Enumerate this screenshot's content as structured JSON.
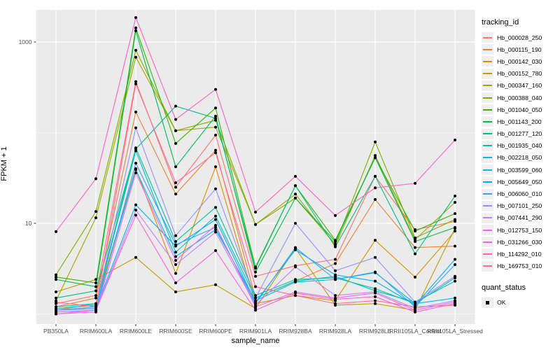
{
  "axes": {
    "x": {
      "label": "sample_name"
    },
    "y": {
      "label": "FPKM + 1",
      "tick_labels": [
        "10",
        "1000"
      ]
    }
  },
  "legends": {
    "tracking": {
      "title": "tracking_id"
    },
    "quant": {
      "title": "quant_status",
      "items": [
        {
          "label": "OK"
        }
      ]
    }
  },
  "style": {
    "panel_bg": "#EBEBEB",
    "grid": "#FFFFFF",
    "tick_mark": "#333333",
    "tick_text": "#4D4D4D",
    "legend_key_bg": "#EFEFEF",
    "point_color": "#000000"
  },
  "chart_data": {
    "type": "line",
    "title": "",
    "xlabel": "sample_name",
    "ylabel": "FPKM + 1",
    "y_scale": "log10",
    "y_major_ticks": [
      10,
      1000
    ],
    "y_minor_gridlines": [
      1,
      100
    ],
    "ylim_approx": [
      1,
      2000
    ],
    "legend_position": "right",
    "grid": "on",
    "quant_status_all": "OK",
    "categories": [
      "PB350LA",
      "RRIM600LA",
      "RRIM600LE",
      "RRIM600SE",
      "RRIM600PE",
      "RRIM901LA",
      "RRIM928BA",
      "RRIM928LA",
      "RRIM928LE",
      "RRII105LA_Control",
      "RRII105LA_Stressed"
    ],
    "series": [
      {
        "name": "Hb_000028_250",
        "color": "#F8766D",
        "values": [
          1.3,
          1.6,
          365,
          25,
          94,
          2.6,
          3.4,
          4.0,
          33,
          8.5,
          10.5
        ]
      },
      {
        "name": "Hb_000115_190",
        "color": "#EA8331",
        "values": [
          1.2,
          1.5,
          169,
          21,
          64,
          1.5,
          2.3,
          3.6,
          18.3,
          5.4,
          5.6
        ]
      },
      {
        "name": "Hb_000142_030",
        "color": "#D89000",
        "values": [
          1.1,
          1.3,
          40,
          2.8,
          42,
          1.3,
          1.6,
          1.4,
          6.5,
          2.55,
          8.2
        ]
      },
      {
        "name": "Hb_000152_780",
        "color": "#C09B00",
        "values": [
          1.75,
          2.4,
          4.2,
          1.75,
          2.1,
          1.15,
          5.3,
          1.25,
          1.3,
          1.1,
          8.8
        ]
      },
      {
        "name": "Hb_000347_160",
        "color": "#A3A500",
        "values": [
          1.4,
          11.5,
          680,
          105,
          115,
          9.7,
          21,
          5.7,
          56,
          6.6,
          17
        ]
      },
      {
        "name": "Hb_000388_040",
        "color": "#7CAE00",
        "values": [
          2.7,
          13.5,
          810,
          105,
          137,
          9.7,
          19,
          5.9,
          79,
          6.9,
          11
        ]
      },
      {
        "name": "Hb_001040_050",
        "color": "#39B600",
        "values": [
          2.55,
          2.2,
          1430,
          76,
          187,
          3.3,
          26,
          6.5,
          53,
          8.2,
          12.8
        ]
      },
      {
        "name": "Hb_001143_200",
        "color": "#00BB4E",
        "values": [
          2.4,
          2.0,
          1330,
          42,
          152,
          2.9,
          19,
          6.3,
          53,
          6.3,
          9.0
        ]
      },
      {
        "name": "Hb_001277_120",
        "color": "#00BF7D",
        "values": [
          1.5,
          1.8,
          66,
          196,
          144,
          3.2,
          26,
          5.5,
          33,
          4.6,
          20
        ]
      },
      {
        "name": "Hb_001935_040",
        "color": "#00C1A3",
        "values": [
          1.2,
          1.3,
          68,
          6.3,
          15,
          1.6,
          2.4,
          2.5,
          1.9,
          1.3,
          2.5
        ]
      },
      {
        "name": "Hb_002218_050",
        "color": "#00BFC4",
        "values": [
          1.15,
          1.25,
          63,
          4.8,
          12,
          1.5,
          2.3,
          2.6,
          1.8,
          1.35,
          2.3
        ]
      },
      {
        "name": "Hb_003599_060",
        "color": "#00BAE0",
        "values": [
          1.1,
          1.2,
          39,
          4.3,
          8.5,
          1.4,
          2.25,
          2.4,
          2.85,
          1.3,
          1.5
        ]
      },
      {
        "name": "Hb_005649_050",
        "color": "#00B0F6",
        "values": [
          1.1,
          1.15,
          16,
          5.6,
          11,
          1.35,
          5.1,
          2.7,
          2.3,
          1.25,
          4.0
        ]
      },
      {
        "name": "Hb_006060_010",
        "color": "#35A2FF",
        "values": [
          1.05,
          1.1,
          46,
          5.8,
          9.0,
          1.3,
          5.4,
          2.4,
          2.9,
          1.2,
          3.5
        ]
      },
      {
        "name": "Hb_007101_250",
        "color": "#9590FF",
        "values": [
          1.1,
          1.2,
          113,
          7.3,
          24,
          1.5,
          10,
          3.0,
          4.2,
          1.35,
          2.6
        ]
      },
      {
        "name": "Hb_007441_290",
        "color": "#C77CFF",
        "values": [
          1.05,
          1.1,
          14,
          3.5,
          8.0,
          1.25,
          3.3,
          1.6,
          1.75,
          1.15,
          1.4
        ]
      },
      {
        "name": "Hb_012753_150",
        "color": "#E76BF3",
        "values": [
          1.0,
          1.05,
          36,
          3.9,
          9.5,
          1.2,
          1.75,
          1.5,
          1.7,
          1.1,
          1.35
        ]
      },
      {
        "name": "Hb_031266_030",
        "color": "#FA62DB",
        "values": [
          1.0,
          1.1,
          12.3,
          2.2,
          5.0,
          1.1,
          1.7,
          1.45,
          1.55,
          1.05,
          1.3
        ]
      },
      {
        "name": "Hb_114292_010",
        "color": "#FF62BC",
        "values": [
          8.1,
          31,
          1860,
          140,
          300,
          13.3,
          33,
          12.2,
          24.6,
          27.6,
          83
        ]
      },
      {
        "name": "Hb_169753_010",
        "color": "#FF6A98",
        "values": [
          1.35,
          1.2,
          345,
          28,
          60,
          2.0,
          1.6,
          1.3,
          1.4,
          1.2,
          1.25
        ]
      }
    ]
  }
}
